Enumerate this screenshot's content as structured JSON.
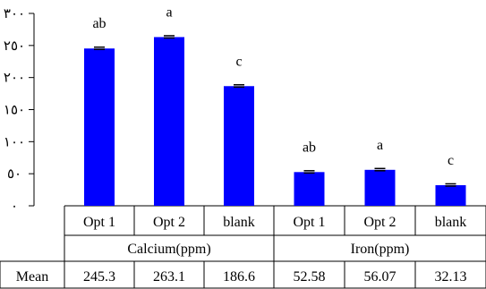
{
  "chart_data": {
    "type": "bar",
    "y_ticks": [
      "٠",
      "٥٠",
      "١٠٠",
      "١٥٠",
      "٢٠٠",
      "٢٥٠",
      "٣٠٠"
    ],
    "ylim": [
      0,
      300
    ],
    "bar_color": "#0000ff",
    "groups": [
      {
        "name": "Calcium(ppm)",
        "categories": [
          "Opt 1",
          "Opt 2",
          "blank"
        ],
        "values": [
          245.3,
          263.1,
          186.6
        ],
        "letters": [
          "ab",
          "a",
          "c"
        ],
        "means": [
          "245.3",
          "263.1",
          "186.6"
        ]
      },
      {
        "name": "Iron(ppm)",
        "categories": [
          "Opt 1",
          "Opt 2",
          "blank"
        ],
        "values": [
          52.58,
          56.07,
          32.13
        ],
        "letters": [
          "ab",
          "a",
          "c"
        ],
        "means": [
          "52.58",
          "56.07",
          "32.13"
        ]
      }
    ],
    "table_row_label": "Mean"
  }
}
